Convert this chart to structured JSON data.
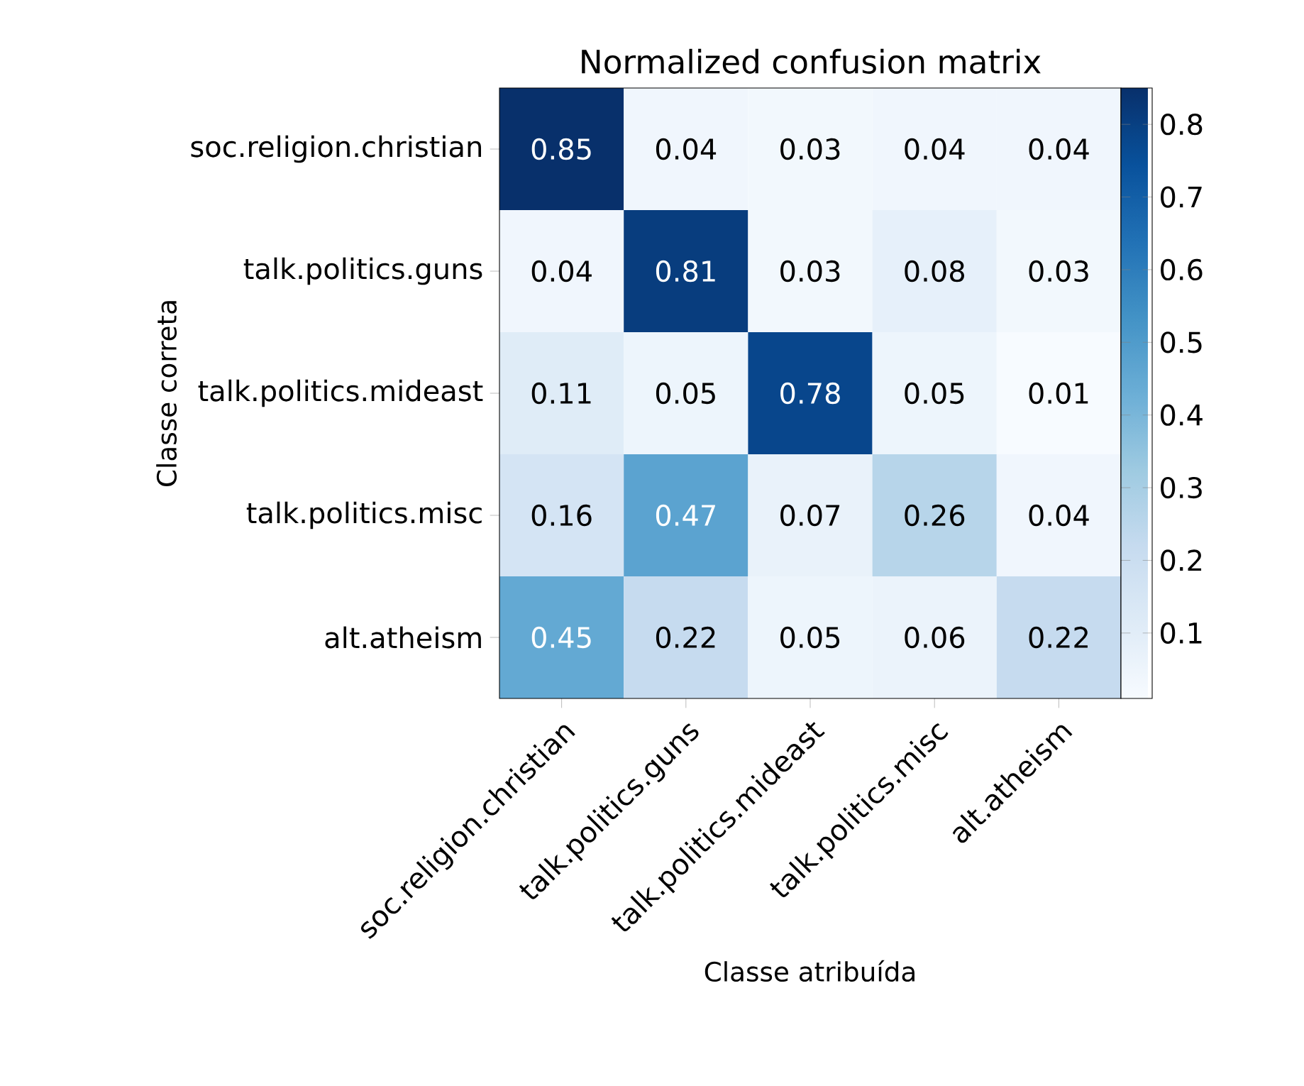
{
  "chart_data": {
    "type": "heatmap",
    "title": "Normalized confusion matrix",
    "xlabel": "Classe atribuída",
    "ylabel": "Classe correta",
    "categories": [
      "soc.religion.christian",
      "talk.politics.guns",
      "talk.politics.mideast",
      "talk.politics.misc",
      "alt.atheism"
    ],
    "y_categories": [
      "soc.religion.christian",
      "talk.politics.guns",
      "talk.politics.mideast",
      "talk.politics.misc",
      "alt.atheism"
    ],
    "cells": [
      [
        0.85,
        0.04,
        0.03,
        0.04,
        0.04
      ],
      [
        0.04,
        0.81,
        0.03,
        0.08,
        0.03
      ],
      [
        0.11,
        0.05,
        0.78,
        0.05,
        0.01
      ],
      [
        0.16,
        0.47,
        0.07,
        0.26,
        0.04
      ],
      [
        0.45,
        0.22,
        0.05,
        0.06,
        0.22
      ]
    ],
    "data_labels": true,
    "clim": [
      0.01,
      0.85
    ],
    "cticks": [
      0.1,
      0.2,
      0.3,
      0.4,
      0.5,
      0.6,
      0.7,
      0.8
    ]
  }
}
